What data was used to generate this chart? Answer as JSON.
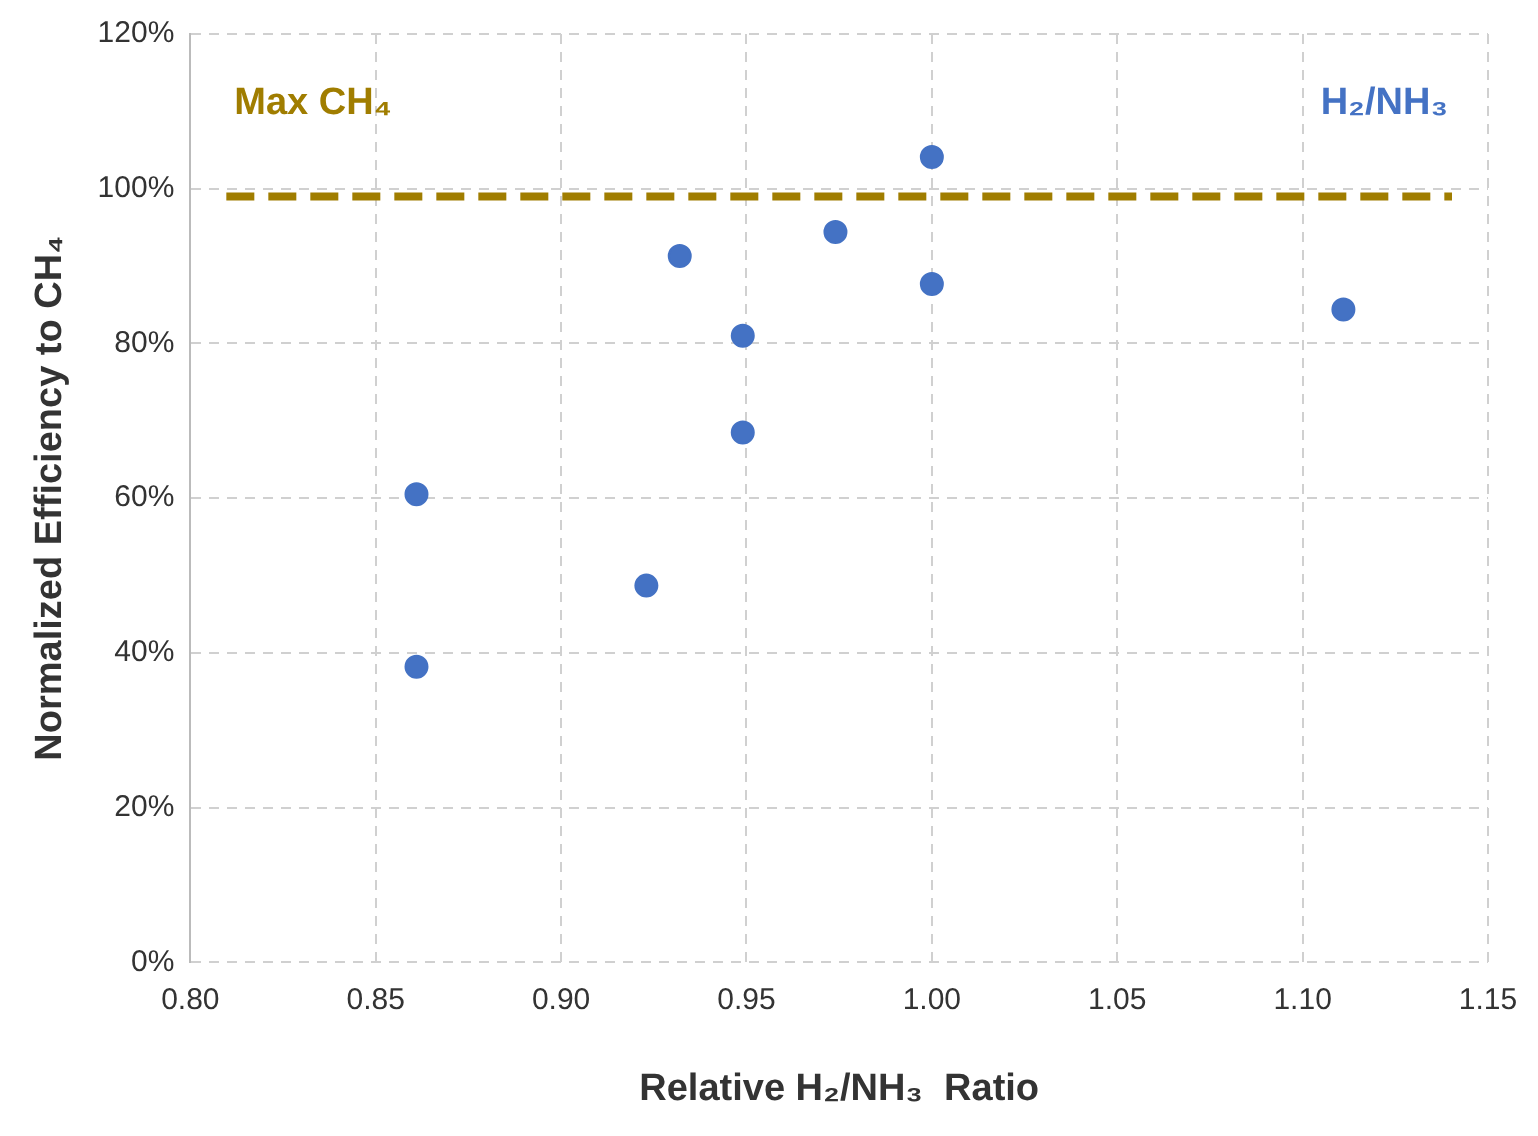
{
  "chart_data": {
    "type": "scatter",
    "xlabel": "Relative H₂/NH₃  Ratio",
    "ylabel": "Normalized Efficiency to CH₄",
    "series": [
      {
        "name": "H₂/NH₃",
        "color": "#4472c4",
        "x": [
          0.861,
          0.861,
          0.923,
          0.932,
          0.949,
          0.949,
          0.974,
          1.0,
          1.0,
          1.111
        ],
        "values": [
          60.5,
          38.2,
          48.7,
          91.3,
          81,
          68.5,
          94.4,
          104.1,
          87.7,
          84.4
        ]
      }
    ],
    "xlim": [
      0.8,
      1.15
    ],
    "xticks": [
      {
        "value": 0.8,
        "label": "0.80"
      },
      {
        "value": 0.85,
        "label": "0.85"
      },
      {
        "value": 0.9,
        "label": "0.90"
      },
      {
        "value": 0.95,
        "label": "0.95"
      },
      {
        "value": 1.0,
        "label": "1.00"
      },
      {
        "value": 1.05,
        "label": "1.05"
      },
      {
        "value": 1.1,
        "label": "1.10"
      },
      {
        "value": 1.15,
        "label": "1.15"
      }
    ],
    "ylim": [
      0,
      120
    ],
    "yticks": [
      {
        "value": 0,
        "label": "0%"
      },
      {
        "value": 20,
        "label": "20%"
      },
      {
        "value": 40,
        "label": "40%"
      },
      {
        "value": 60,
        "label": "60%"
      },
      {
        "value": 80,
        "label": "80%"
      },
      {
        "value": 100,
        "label": "100%"
      },
      {
        "value": 120,
        "label": "120%"
      }
    ],
    "ref_lines": [
      {
        "axis": "y",
        "value": 99,
        "label": "Max CH₄",
        "color": "#a07d00",
        "line_style": "dashed"
      }
    ],
    "grid": true,
    "marker": "circle",
    "legend": "top right"
  }
}
